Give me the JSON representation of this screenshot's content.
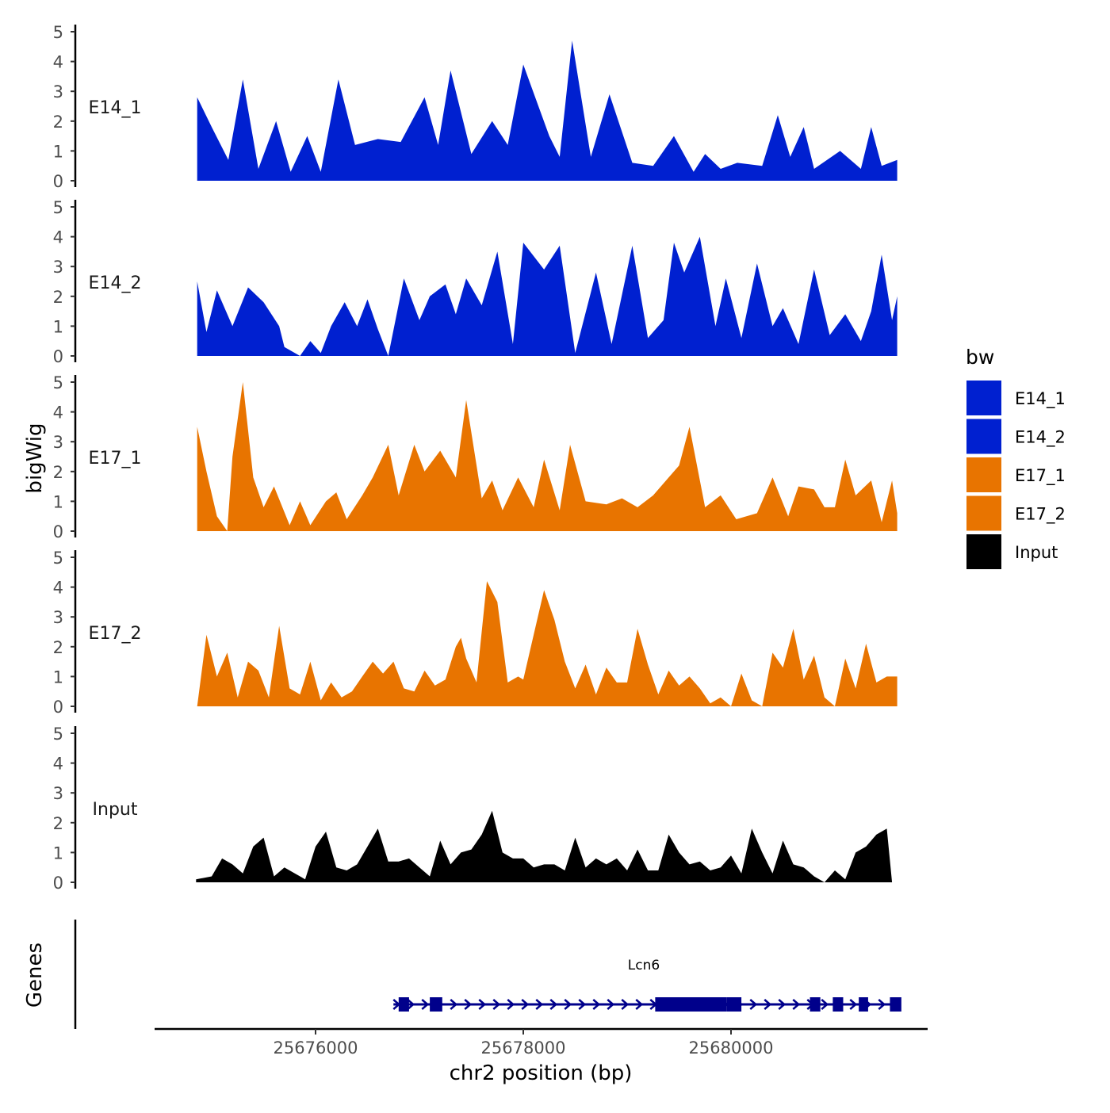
{
  "chart_data": {
    "type": "area",
    "title": "",
    "ylabel": "bigWig",
    "genes_label": "Genes",
    "xlabel": "chr2 position (bp)",
    "x_tick_labels": [
      "25676000",
      "25678000",
      "25680000"
    ],
    "x_ticks": [
      25676000,
      25678000,
      25680000
    ],
    "xlim": [
      25674500,
      25681950
    ],
    "ylim": [
      0,
      5
    ],
    "y_ticks": [
      0,
      1,
      2,
      3,
      4,
      5
    ],
    "y_tick_labels": [
      "0",
      "1",
      "2",
      "3",
      "4",
      "5"
    ],
    "legend": {
      "title": "bw",
      "position": "right",
      "entries": [
        {
          "label": "E14_1",
          "color": "#0020d0"
        },
        {
          "label": "E14_2",
          "color": "#0020d0"
        },
        {
          "label": "E17_1",
          "color": "#e87400"
        },
        {
          "label": "E17_2",
          "color": "#e87400"
        },
        {
          "label": "Input",
          "color": "#000000"
        }
      ]
    },
    "series": [
      {
        "name": "E14_1",
        "color": "#0020d0",
        "x": [
          25674860,
          25675000,
          25675160,
          25675300,
          25675450,
          25675620,
          25675760,
          25675920,
          25676050,
          25676220,
          25676380,
          25676600,
          25676820,
          25677050,
          25677180,
          25677300,
          25677500,
          25677700,
          25677850,
          25678000,
          25678250,
          25678350,
          25678470,
          25678650,
          25678830,
          25679050,
          25679250,
          25679450,
          25679640,
          25679750,
          25679900,
          25680060,
          25680300,
          25680450,
          25680570,
          25680700,
          25680800,
          25681050,
          25681250,
          25681350,
          25681450,
          25681600
        ],
        "values": [
          2.8,
          1.8,
          0.7,
          3.4,
          0.4,
          2.0,
          0.3,
          1.5,
          0.3,
          3.4,
          1.2,
          1.4,
          1.3,
          2.8,
          1.2,
          3.7,
          0.9,
          2.0,
          1.2,
          3.9,
          1.5,
          0.8,
          4.7,
          0.8,
          2.9,
          0.6,
          0.5,
          1.5,
          0.3,
          0.9,
          0.4,
          0.6,
          0.5,
          2.2,
          0.8,
          1.8,
          0.4,
          1.0,
          0.4,
          1.8,
          0.5,
          0.7
        ]
      },
      {
        "name": "E14_2",
        "color": "#0020d0",
        "x": [
          25674860,
          25674950,
          25675050,
          25675200,
          25675350,
          25675500,
          25675650,
          25675700,
          25675850,
          25675950,
          25676050,
          25676150,
          25676280,
          25676400,
          25676500,
          25676600,
          25676700,
          25676850,
          25677000,
          25677100,
          25677250,
          25677350,
          25677450,
          25677600,
          25677750,
          25677900,
          25678000,
          25678200,
          25678350,
          25678500,
          25678700,
          25678850,
          25679050,
          25679200,
          25679350,
          25679450,
          25679550,
          25679700,
          25679850,
          25679950,
          25680100,
          25680250,
          25680400,
          25680500,
          25680650,
          25680800,
          25680950,
          25681100,
          25681250,
          25681350,
          25681450,
          25681550,
          25681600
        ],
        "values": [
          2.5,
          0.8,
          2.2,
          1.0,
          2.3,
          1.8,
          1.0,
          0.3,
          0.0,
          0.5,
          0.1,
          1.0,
          1.8,
          1.0,
          1.9,
          0.9,
          0.0,
          2.6,
          1.2,
          2.0,
          2.4,
          1.4,
          2.6,
          1.7,
          3.5,
          0.4,
          3.8,
          2.9,
          3.7,
          0.1,
          2.8,
          0.4,
          3.7,
          0.6,
          1.2,
          3.8,
          2.8,
          4.0,
          1.0,
          2.6,
          0.6,
          3.1,
          1.0,
          1.6,
          0.4,
          2.9,
          0.7,
          1.4,
          0.5,
          1.5,
          3.4,
          1.2,
          2.0
        ]
      },
      {
        "name": "E17_1",
        "color": "#e87400",
        "x": [
          25674860,
          25674950,
          25675050,
          25675150,
          25675200,
          25675300,
          25675400,
          25675500,
          25675600,
          25675750,
          25675850,
          25675950,
          25676100,
          25676200,
          25676300,
          25676450,
          25676550,
          25676700,
          25676800,
          25676950,
          25677050,
          25677200,
          25677350,
          25677450,
          25677600,
          25677700,
          25677800,
          25677950,
          25678100,
          25678200,
          25678350,
          25678450,
          25678600,
          25678800,
          25678950,
          25679100,
          25679250,
          25679400,
          25679500,
          25679600,
          25679750,
          25679900,
          25680050,
          25680250,
          25680400,
          25680550,
          25680650,
          25680800,
          25680900,
          25681000,
          25681100,
          25681200,
          25681350,
          25681450,
          25681550,
          25681600
        ],
        "values": [
          3.5,
          2.0,
          0.5,
          0.0,
          2.5,
          5.0,
          1.8,
          0.8,
          1.5,
          0.2,
          1.0,
          0.2,
          1.0,
          1.3,
          0.4,
          1.2,
          1.8,
          2.9,
          1.2,
          2.9,
          2.0,
          2.7,
          1.8,
          4.4,
          1.1,
          1.7,
          0.7,
          1.8,
          0.8,
          2.4,
          0.7,
          2.9,
          1.0,
          0.9,
          1.1,
          0.8,
          1.2,
          1.8,
          2.2,
          3.5,
          0.8,
          1.2,
          0.4,
          0.6,
          1.8,
          0.5,
          1.5,
          1.4,
          0.8,
          0.8,
          2.4,
          1.2,
          1.7,
          0.3,
          1.7,
          0.6
        ]
      },
      {
        "name": "E17_2",
        "color": "#e87400",
        "x": [
          25674860,
          25674950,
          25675050,
          25675150,
          25675250,
          25675350,
          25675450,
          25675550,
          25675650,
          25675750,
          25675850,
          25675950,
          25676050,
          25676150,
          25676250,
          25676350,
          25676450,
          25676550,
          25676650,
          25676750,
          25676850,
          25676950,
          25677050,
          25677150,
          25677250,
          25677350,
          25677400,
          25677450,
          25677550,
          25677650,
          25677750,
          25677850,
          25677950,
          25678000,
          25678100,
          25678200,
          25678300,
          25678400,
          25678500,
          25678600,
          25678700,
          25678800,
          25678900,
          25679000,
          25679100,
          25679200,
          25679300,
          25679400,
          25679500,
          25679600,
          25679700,
          25679800,
          25679900,
          25680000,
          25680100,
          25680200,
          25680300,
          25680400,
          25680500,
          25680600,
          25680700,
          25680800,
          25680900,
          25681000,
          25681100,
          25681200,
          25681300,
          25681400,
          25681500,
          25681600
        ],
        "values": [
          0.0,
          2.4,
          1.0,
          1.8,
          0.3,
          1.5,
          1.2,
          0.3,
          2.7,
          0.6,
          0.4,
          1.5,
          0.2,
          0.8,
          0.3,
          0.5,
          1.0,
          1.5,
          1.1,
          1.5,
          0.6,
          0.5,
          1.2,
          0.7,
          0.9,
          2.0,
          2.3,
          1.6,
          0.8,
          4.2,
          3.5,
          0.8,
          1.0,
          0.9,
          2.4,
          3.9,
          2.9,
          1.5,
          0.6,
          1.4,
          0.4,
          1.3,
          0.8,
          0.8,
          2.6,
          1.4,
          0.4,
          1.2,
          0.7,
          1.0,
          0.6,
          0.1,
          0.3,
          0.0,
          1.1,
          0.2,
          0.0,
          1.8,
          1.3,
          2.6,
          0.9,
          1.7,
          0.3,
          0.0,
          1.6,
          0.6,
          2.1,
          0.8,
          1.0,
          1.0
        ]
      },
      {
        "name": "Input",
        "color": "#000000",
        "x": [
          25674850,
          25675000,
          25675100,
          25675200,
          25675300,
          25675400,
          25675500,
          25675600,
          25675700,
          25675800,
          25675900,
          25676000,
          25676100,
          25676200,
          25676300,
          25676400,
          25676500,
          25676600,
          25676700,
          25676800,
          25676900,
          25677000,
          25677100,
          25677200,
          25677300,
          25677400,
          25677500,
          25677600,
          25677700,
          25677800,
          25677900,
          25678000,
          25678100,
          25678200,
          25678300,
          25678400,
          25678500,
          25678600,
          25678700,
          25678800,
          25678900,
          25679000,
          25679100,
          25679200,
          25679300,
          25679400,
          25679500,
          25679600,
          25679700,
          25679800,
          25679900,
          25680000,
          25680100,
          25680200,
          25680300,
          25680400,
          25680500,
          25680600,
          25680700,
          25680800,
          25680900,
          25681000,
          25681100,
          25681200,
          25681300,
          25681400,
          25681500,
          25681550
        ],
        "values": [
          0.1,
          0.2,
          0.8,
          0.6,
          0.3,
          1.2,
          1.5,
          0.2,
          0.5,
          0.3,
          0.1,
          1.2,
          1.7,
          0.5,
          0.4,
          0.6,
          1.2,
          1.8,
          0.7,
          0.7,
          0.8,
          0.5,
          0.2,
          1.4,
          0.6,
          1.0,
          1.1,
          1.6,
          2.4,
          1.0,
          0.8,
          0.8,
          0.5,
          0.6,
          0.6,
          0.4,
          1.5,
          0.5,
          0.8,
          0.6,
          0.8,
          0.4,
          1.1,
          0.4,
          0.4,
          1.6,
          1.0,
          0.6,
          0.7,
          0.4,
          0.5,
          0.9,
          0.3,
          1.8,
          1.0,
          0.3,
          1.4,
          0.6,
          0.5,
          0.2,
          0.0,
          0.4,
          0.1,
          1.0,
          1.2,
          1.6,
          1.8,
          0.0
        ]
      }
    ],
    "genes": [
      {
        "name": "Lcn6",
        "color": "#00008b",
        "start": 25676750,
        "end": 25681600,
        "strand": "+",
        "exons": [
          [
            25676800,
            25676900
          ],
          [
            25677100,
            25677220
          ],
          [
            25679270,
            25679960
          ],
          [
            25679960,
            25680100
          ],
          [
            25680760,
            25680860
          ],
          [
            25680980,
            25681080
          ],
          [
            25681230,
            25681320
          ],
          [
            25681530,
            25681640
          ]
        ]
      }
    ]
  }
}
